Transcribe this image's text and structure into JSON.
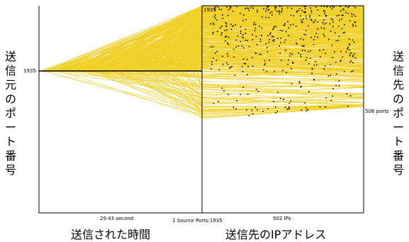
{
  "chart_data": {
    "type": "parallel-coordinates",
    "axes": {
      "left_vertical_label": "送信元のポート番号",
      "right_vertical_label": "送信先のポート番号",
      "left_tick": "1935",
      "right_tick": "506 ports",
      "top_tick": "1935",
      "bottom_time_label": "29.43 second",
      "bottom_source_label": "1 Source Ports:1935",
      "bottom_ip_label": "502 IPs",
      "x_title_left": "送信された時間",
      "x_title_right": "送信先のIPアドレス"
    },
    "summary": {
      "source_ports": 1,
      "source_port": 1935,
      "destination_ips": 502,
      "destination_ports": 506,
      "duration_seconds": 29.43
    },
    "colors": {
      "line": "#f0d02a",
      "axis": "#000000",
      "dot": "#000000"
    }
  }
}
